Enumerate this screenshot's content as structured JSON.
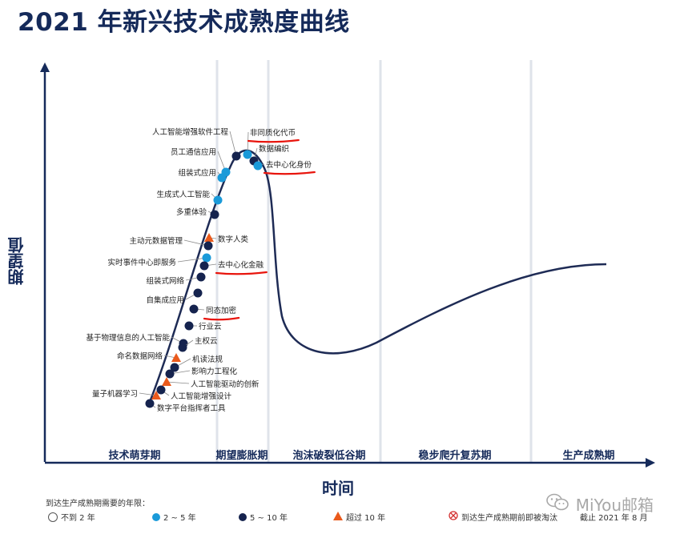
{
  "title": "2021 年新兴技术成熟度曲线",
  "chart_data": {
    "type": "line",
    "title": "2021 年新兴技术成熟度曲线",
    "xlabel": "时间",
    "ylabel": "期望值",
    "phases": [
      "技术萌芽期",
      "期望膨胀期",
      "泡沫破裂低谷期",
      "稳步爬升复苏期",
      "生产成熟期"
    ],
    "technologies": [
      {
        "label": "人工智能增强软件工程",
        "years": "5~10"
      },
      {
        "label": "非同质化代币",
        "years": "2~5",
        "highlighted": true
      },
      {
        "label": "数据编织",
        "years": "5~10"
      },
      {
        "label": "员工通信应用",
        "years": "2~5"
      },
      {
        "label": "去中心化身份",
        "years": "2~5",
        "highlighted": true
      },
      {
        "label": "组装式应用",
        "years": "2~5"
      },
      {
        "label": "生成式人工智能",
        "years": "2~5"
      },
      {
        "label": "多重体验",
        "years": "5~10"
      },
      {
        "label": "数字人类",
        "years": ">10"
      },
      {
        "label": "主动元数据管理",
        "years": "5~10"
      },
      {
        "label": "实时事件中心即服务",
        "years": "2~5"
      },
      {
        "label": "去中心化金融",
        "years": "5~10",
        "highlighted": true
      },
      {
        "label": "组装式网络",
        "years": "5~10"
      },
      {
        "label": "自集成应用",
        "years": "5~10"
      },
      {
        "label": "同态加密",
        "years": "5~10",
        "highlighted": true
      },
      {
        "label": "行业云",
        "years": "5~10"
      },
      {
        "label": "基于物理信息的人工智能",
        "years": "5~10"
      },
      {
        "label": "主权云",
        "years": "5~10"
      },
      {
        "label": "命名数据网络",
        "years": ">10"
      },
      {
        "label": "机读法规",
        "years": "5~10"
      },
      {
        "label": "影响力工程化",
        "years": "5~10"
      },
      {
        "label": "人工智能驱动的创新",
        "years": ">10"
      },
      {
        "label": "量子机器学习",
        "years": ">10"
      },
      {
        "label": "人工智能增强设计",
        "years": "5~10"
      },
      {
        "label": "数字平台指挥者工具",
        "years": "5~10"
      }
    ],
    "legend": {
      "title": "到达生产成熟期需要的年限：",
      "items": [
        {
          "key": "lt2",
          "label": "不到 2 年",
          "color": "#ffffff"
        },
        {
          "key": "2~5",
          "label": "2 ~ 5 年",
          "color": "#1a9ad9"
        },
        {
          "key": "5~10",
          "label": "5 ~ 10 年",
          "color": "#15234e"
        },
        {
          "key": ">10",
          "label": "超过 10 年",
          "color": "#ea5a1c"
        },
        {
          "key": "obsolete",
          "label": "到达生产成熟期前即被淘汰",
          "color": "#d32f2f"
        }
      ],
      "as_of": "截止 2021 年 8 月"
    },
    "colors": {
      "curve": "#1e2b55",
      "axis": "#152a5a",
      "highlight": "#e8150d"
    }
  },
  "watermark": "MiYou邮箱"
}
